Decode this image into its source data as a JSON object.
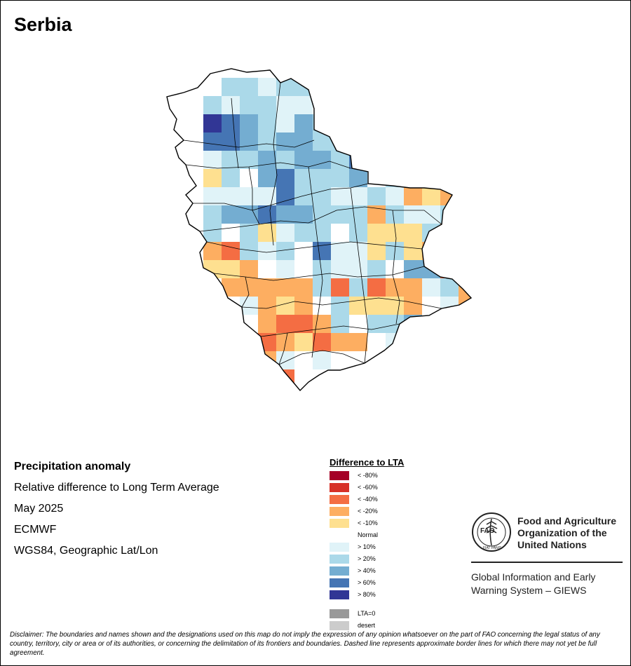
{
  "title": "Serbia",
  "info": {
    "heading": "Precipitation anomaly",
    "subtitle": "Relative difference to Long Term Average",
    "period": "May 2025",
    "source": "ECMWF",
    "projection": "WGS84, Geographic Lat/Lon"
  },
  "legend": {
    "title": "Difference to LTA",
    "items": [
      {
        "label": "< -80%",
        "color": "#a50026"
      },
      {
        "label": "< -60%",
        "color": "#d73027"
      },
      {
        "label": "< -40%",
        "color": "#f46d43"
      },
      {
        "label": "< -20%",
        "color": "#fdae61"
      },
      {
        "label": "< -10%",
        "color": "#fee090"
      },
      {
        "label": "Normal",
        "color": "#ffffff"
      },
      {
        "label": "> 10%",
        "color": "#e0f3f8"
      },
      {
        "label": "> 20%",
        "color": "#abd9e9"
      },
      {
        "label": "> 40%",
        "color": "#74add1"
      },
      {
        "label": "> 60%",
        "color": "#4575b4"
      },
      {
        "label": "> 80%",
        "color": "#313695"
      }
    ],
    "extra": [
      {
        "label": "LTA=0",
        "color": "#999999"
      },
      {
        "label": "desert",
        "color": "#cccccc"
      }
    ]
  },
  "org": {
    "name_line1": "Food and Agriculture",
    "name_line2": "Organization of the",
    "name_line3": "United Nations",
    "system_line1": "Global Information and Early",
    "system_line2": "Warning System – GIEWS",
    "logo_text": "FAO",
    "logo_motto": "FIAT PANIS"
  },
  "disclaimer": "Disclaimer: The boundaries and names shown and the designations used on this map do not imply the expression of any opinion whatsoever on the part of FAO concerning the legal status of any country, territory, city or area or of its authorities, or concerning the delimitation of its frontiers and boundaries. Dashed line represents approximate border lines for which there may not yet be full agreement."
}
